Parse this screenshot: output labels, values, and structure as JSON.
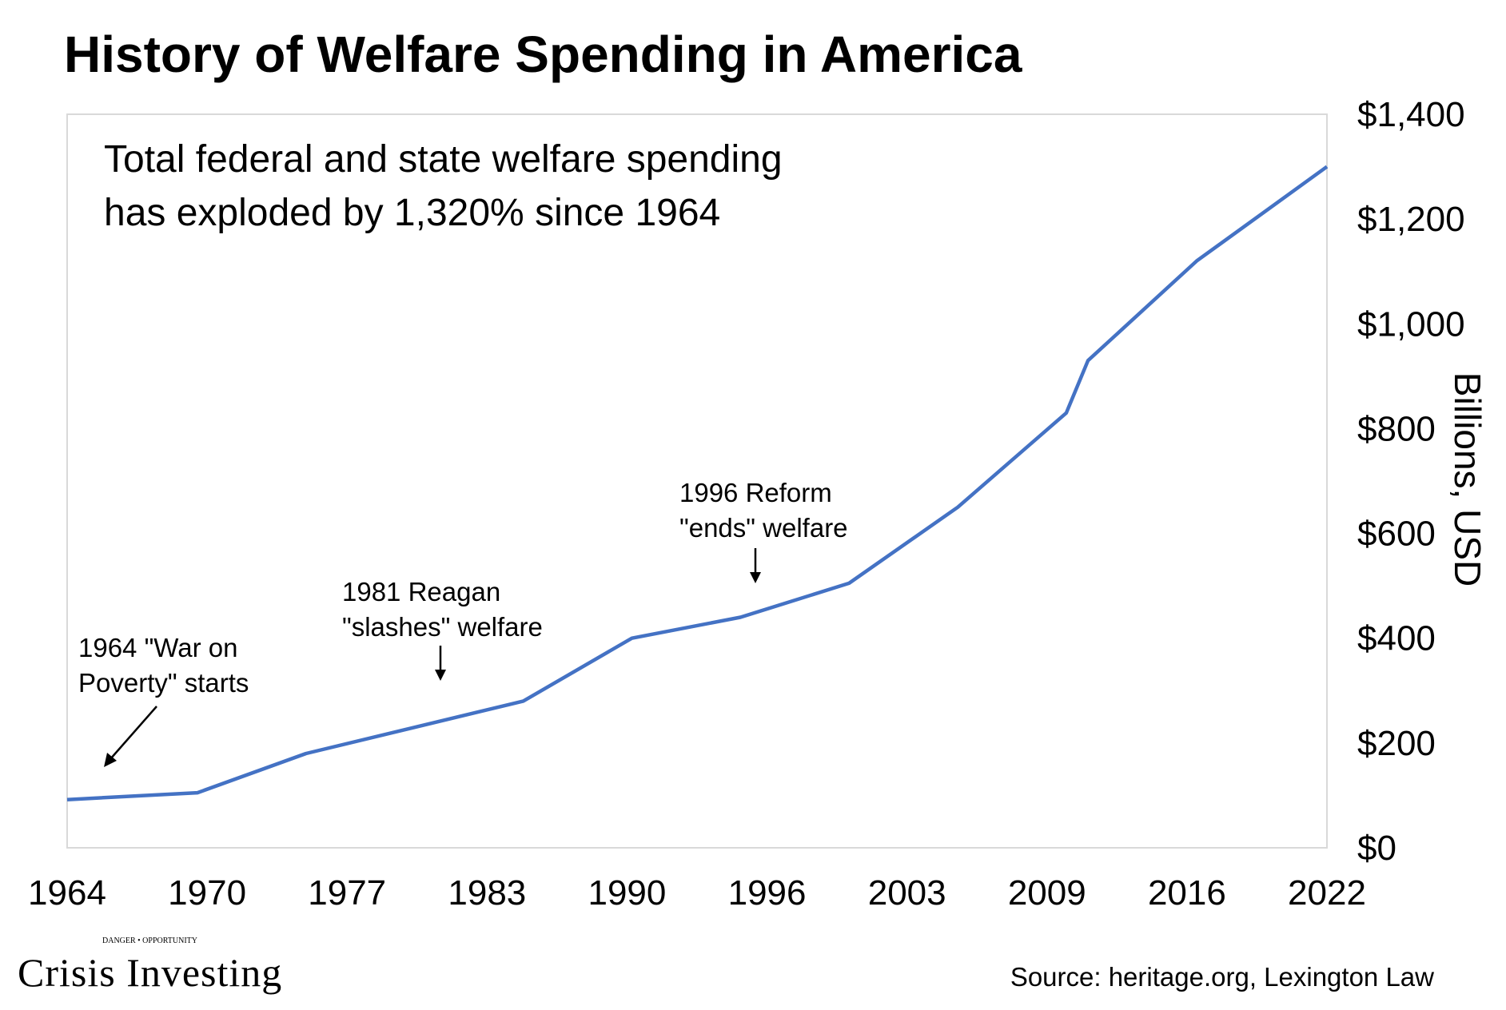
{
  "chart_data": {
    "type": "line",
    "title": "History of Welfare Spending in America",
    "subtitle_lines": [
      "Total federal and state welfare spending",
      "has exploded by 1,320% since 1964"
    ],
    "ylabel": "Billions, USD",
    "x_tick_labels": [
      "1964",
      "1970",
      "1977",
      "1983",
      "1990",
      "1996",
      "2003",
      "2009",
      "2016",
      "2022"
    ],
    "x_range": [
      1964,
      2022
    ],
    "ylim": [
      0,
      1400
    ],
    "y_ticks": [
      0,
      200,
      400,
      600,
      800,
      1000,
      1200,
      1400
    ],
    "y_tick_labels": [
      "$0",
      "$200",
      "$400",
      "$600",
      "$800",
      "$1,000",
      "$1,200",
      "$1,400"
    ],
    "grid": false,
    "series": [
      {
        "color": "#4472c4",
        "x": [
          1964,
          1970,
          1975,
          1985,
          1990,
          1995,
          2000,
          2005,
          2010,
          2011,
          2016,
          2022
        ],
        "y": [
          92,
          105,
          180,
          280,
          400,
          440,
          505,
          650,
          830,
          930,
          1120,
          1300
        ]
      }
    ],
    "annotations": [
      {
        "id": "war-on-poverty",
        "lines": [
          "1964 \"War on",
          "Poverty\" starts"
        ]
      },
      {
        "id": "reagan",
        "lines": [
          "1981 Reagan",
          "\"slashes\" welfare"
        ]
      },
      {
        "id": "reform",
        "lines": [
          "1996 Reform",
          "\"ends\" welfare"
        ]
      }
    ]
  },
  "source": "Source: heritage.org, Lexington Law",
  "logo": {
    "text": "Crisis Investing",
    "tagline": "DANGER • OPPORTUNITY"
  }
}
